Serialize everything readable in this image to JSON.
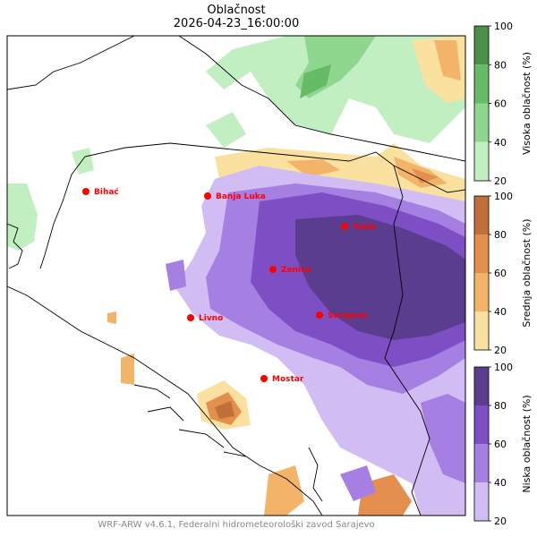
{
  "title": "Oblačnost",
  "subtitle": "2026-04-23_16:00:00",
  "footer": "WRF-ARW v4.6.1, Federalni hidrometeorološki zavod Sarajevo",
  "cities": [
    {
      "name": "Bihać"
    },
    {
      "name": "Banja Luka"
    },
    {
      "name": "Tuzla"
    },
    {
      "name": "Zenica"
    },
    {
      "name": "Livno"
    },
    {
      "name": "Sarajevo"
    },
    {
      "name": "Mostar"
    }
  ],
  "colorbars": [
    {
      "label": "Visoka oblačnost (%)",
      "ticks": [
        "100",
        "80",
        "60",
        "40",
        "20"
      ],
      "colors": [
        "#4a8f4a",
        "#66bb66",
        "#8fd68f",
        "#c2efc2"
      ]
    },
    {
      "label": "Srednja oblačnost (%)",
      "ticks": [
        "100",
        "80",
        "60",
        "40",
        "20"
      ],
      "colors": [
        "#c0703a",
        "#e48f4e",
        "#f3b469",
        "#fbe1a0"
      ]
    },
    {
      "label": "Niska oblačnost (%)",
      "ticks": [
        "100",
        "80",
        "60",
        "40",
        "20"
      ],
      "colors": [
        "#5a3d8f",
        "#7e4fc4",
        "#a67fe2",
        "#d1bcf4"
      ]
    }
  ],
  "colors": {
    "city_marker": "#ff0000",
    "city_label": "#ff0000",
    "border": "#000000"
  }
}
